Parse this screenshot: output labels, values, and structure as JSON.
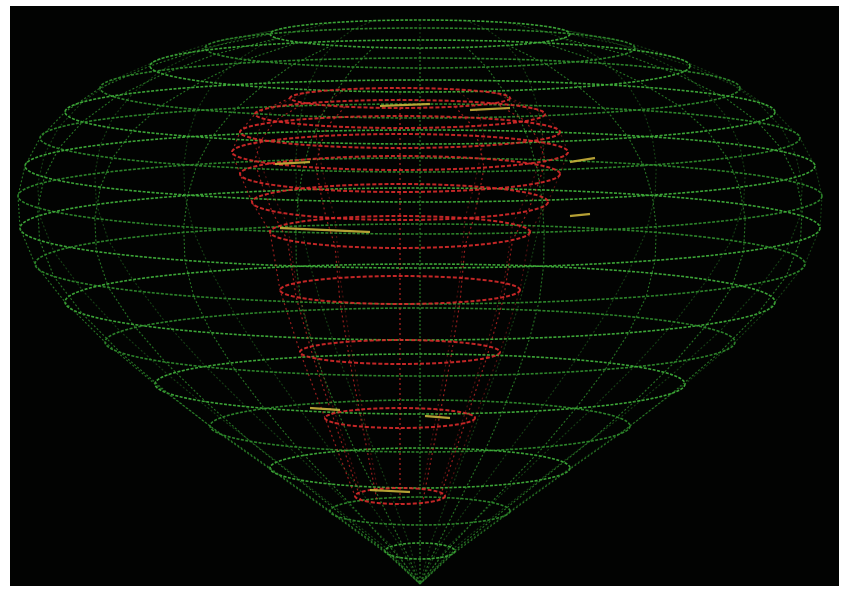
{
  "image": {
    "kind": "photograph-of-crt-wireframe-display",
    "subject": "wireframe-surface-plot",
    "background_color": "#020302",
    "frame_color": "#ffffff",
    "colors": {
      "outer_surface": "#3fae3a",
      "outer_surface_dim": "#2e8a2c",
      "inner_surface": "#d92a2a",
      "highlight": "#c9b23a"
    }
  }
}
